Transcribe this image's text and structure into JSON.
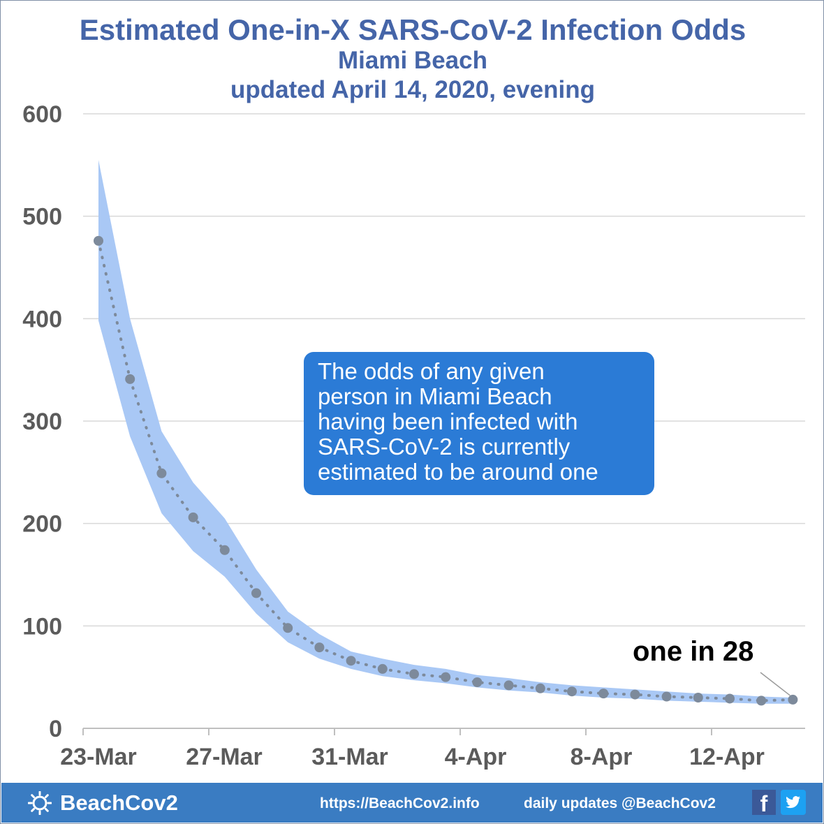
{
  "title": "Estimated One-in-X SARS-CoV-2 Infection Odds",
  "subtitle_location": "Miami Beach",
  "subtitle_updated": "updated April 14, 2020, evening",
  "callout": {
    "lines": [
      "The odds of any given",
      "person in Miami Beach",
      "having been infected with",
      "SARS-CoV-2 is currently",
      "estimated to be around one"
    ],
    "label_prefix": "one in",
    "label_value": "28"
  },
  "footer": {
    "brand": "BeachCov2",
    "site": "https://BeachCov2.info",
    "daily": "daily updates @BeachCov2",
    "icons": [
      "sun-gear-icon",
      "facebook-icon",
      "twitter-icon"
    ]
  },
  "colors": {
    "title": "#4565a8",
    "band": "#a9c8f5",
    "points": "#7d8a9b",
    "callout": "#2b7bd6",
    "footer": "#3a7cc2"
  },
  "chart_data": {
    "type": "line",
    "title": "Estimated One-in-X SARS-CoV-2 Infection Odds",
    "ylim": [
      0,
      600
    ],
    "yticks": [
      "0",
      "100",
      "200",
      "300",
      "400",
      "500",
      "600"
    ],
    "x_tick_labels": [
      "23-Mar",
      "27-Mar",
      "31-Mar",
      "4-Apr",
      "8-Apr",
      "12-Apr"
    ],
    "x": [
      "23-Mar",
      "24-Mar",
      "25-Mar",
      "26-Mar",
      "27-Mar",
      "28-Mar",
      "29-Mar",
      "30-Mar",
      "31-Mar",
      "1-Apr",
      "2-Apr",
      "3-Apr",
      "4-Apr",
      "5-Apr",
      "6-Apr",
      "7-Apr",
      "8-Apr",
      "9-Apr",
      "10-Apr",
      "11-Apr",
      "12-Apr",
      "13-Apr",
      "14-Apr"
    ],
    "series": [
      {
        "values": [
          476,
          341,
          249,
          206,
          174,
          132,
          98,
          79,
          66,
          58,
          53,
          50,
          45,
          42,
          39,
          36,
          34,
          33,
          31,
          30,
          29,
          27,
          28
        ]
      }
    ],
    "band_upper": [
      555,
      400,
      290,
      240,
      205,
      155,
      114,
      92,
      75,
      68,
      62,
      58,
      52,
      49,
      45,
      42,
      40,
      38,
      36,
      34,
      33,
      31,
      30
    ],
    "band_lower": [
      398,
      285,
      210,
      173,
      148,
      112,
      84,
      68,
      58,
      51,
      47,
      44,
      40,
      37,
      35,
      32,
      30,
      29,
      27,
      26,
      25,
      24,
      24
    ],
    "grid": true,
    "legend": "none"
  }
}
